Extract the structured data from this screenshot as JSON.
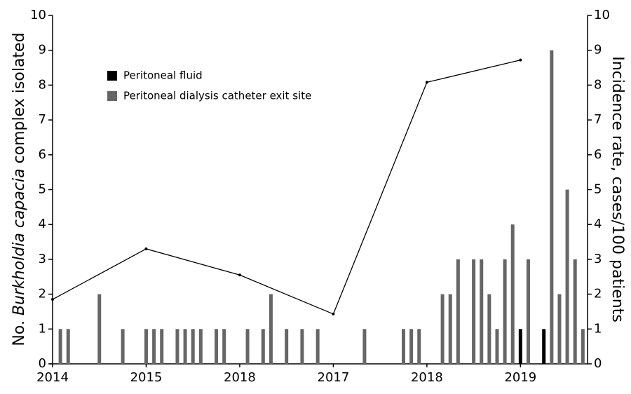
{
  "chart_data": {
    "type": "bar",
    "ylabel": [
      "No. ",
      "Burkholdia capacia",
      " complex isolated"
    ],
    "y2label": "Incidence rate, cases/100 patients",
    "xlim": [
      0,
      68.6
    ],
    "xticks": [
      {
        "value": 0,
        "label": "2014"
      },
      {
        "value": 12,
        "label": "2015"
      },
      {
        "value": 24,
        "label": "2018"
      },
      {
        "value": 36,
        "label": "2017"
      },
      {
        "value": 48,
        "label": "2018"
      },
      {
        "value": 60,
        "label": "2019"
      }
    ],
    "ylim": [
      0,
      10
    ],
    "yticks": [
      0,
      1,
      2,
      3,
      4,
      5,
      6,
      7,
      8,
      9,
      10
    ],
    "y2lim": [
      0,
      10
    ],
    "y2ticks": [
      0,
      1,
      2,
      3,
      4,
      5,
      6,
      7,
      8,
      9,
      10
    ],
    "series": [
      {
        "name": "Peritoneal fluid",
        "color": "#000000",
        "x": [
          60,
          63
        ],
        "values": [
          1,
          1
        ]
      },
      {
        "name": "Peritoneal dialysis catheter exit site",
        "color": "#666666",
        "x": [
          1,
          2,
          6,
          9,
          12,
          13,
          14,
          16,
          17,
          18,
          19,
          21,
          22,
          25,
          27,
          28,
          30,
          32,
          34,
          40,
          45,
          46,
          47,
          50,
          51,
          52,
          54,
          55,
          56,
          57,
          58,
          59,
          61,
          64,
          65,
          66,
          67,
          68
        ],
        "values": [
          1,
          1,
          2,
          1,
          1,
          1,
          1,
          1,
          1,
          1,
          1,
          1,
          1,
          1,
          1,
          2,
          1,
          1,
          1,
          1,
          1,
          1,
          1,
          2,
          2,
          3,
          3,
          3,
          2,
          1,
          3,
          4,
          3,
          9,
          2,
          5,
          3,
          1
        ]
      },
      {
        "type": "line",
        "axis": "y2",
        "color": "#000000",
        "x": [
          0,
          12,
          24,
          36,
          48,
          60
        ],
        "values": [
          1.85,
          3.3,
          2.55,
          1.43,
          8.08,
          8.72
        ]
      }
    ]
  }
}
